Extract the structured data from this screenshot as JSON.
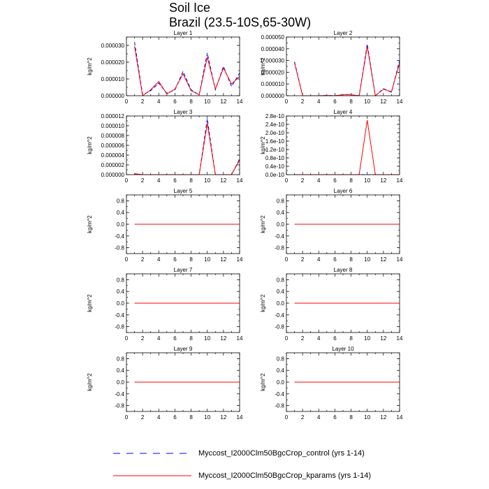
{
  "figure": {
    "title_line1": "Soil Ice",
    "title_line2": "Brazil (23.5-10S,65-30W)"
  },
  "legend": [
    {
      "label": "Myccost_I2000Clm50BgcCrop_control (yrs 1-14)",
      "color": "#0000ff",
      "style": "dashed"
    },
    {
      "label": "Myccost_I2000Clm50BgcCrop_kparams (yrs 1-14)",
      "color": "#ff0000",
      "style": "solid"
    }
  ],
  "chart_data": [
    {
      "type": "line",
      "title": "Layer 1",
      "ylabel": "kg/m^2",
      "xlim": [
        0,
        14
      ],
      "ylim": [
        0,
        3.5e-05
      ],
      "xticks": [
        "0",
        "2",
        "4",
        "6",
        "8",
        "10",
        "12",
        "14"
      ],
      "yticks": [
        {
          "v": 0,
          "label": "0.000000"
        },
        {
          "v": 1e-05,
          "label": "0.000010"
        },
        {
          "v": 2e-05,
          "label": "0.000020"
        },
        {
          "v": 3e-05,
          "label": "0.000030"
        }
      ],
      "x": [
        1,
        2,
        3,
        4,
        5,
        6,
        7,
        8,
        9,
        10,
        11,
        12,
        13,
        14
      ],
      "series": [
        {
          "name": "Myccost_I2000Clm50BgcCrop_control (yrs 1-14)",
          "color": "#0000ff",
          "dash": true,
          "values": [
            3.2e-05,
            5e-07,
            3e-06,
            7.5e-06,
            1.5e-06,
            3.5e-06,
            1.45e-05,
            3.5e-06,
            5e-07,
            2.55e-05,
            3.5e-06,
            1.75e-05,
            5.5e-06,
            1.35e-05
          ]
        },
        {
          "name": "Myccost_I2000Clm50BgcCrop_kparams (yrs 1-14)",
          "color": "#ff0000",
          "dash": false,
          "values": [
            2.95e-05,
            0.0,
            3.5e-06,
            8.5e-06,
            1e-06,
            4e-06,
            1.3e-05,
            3e-06,
            5e-07,
            2.3e-05,
            4e-06,
            1.65e-05,
            7e-06,
            1.15e-05
          ]
        }
      ]
    },
    {
      "type": "line",
      "title": "Layer 2",
      "ylabel": "kg/m^2",
      "xlim": [
        0,
        14
      ],
      "ylim": [
        0,
        5e-05
      ],
      "xticks": [
        "0",
        "2",
        "4",
        "6",
        "8",
        "10",
        "12",
        "14"
      ],
      "yticks": [
        {
          "v": 0,
          "label": "0.000000"
        },
        {
          "v": 1e-05,
          "label": "0.000010"
        },
        {
          "v": 2e-05,
          "label": "0.000020"
        },
        {
          "v": 3e-05,
          "label": "0.000030"
        },
        {
          "v": 4e-05,
          "label": "0.000040"
        },
        {
          "v": 5e-05,
          "label": "0.000050"
        }
      ],
      "x": [
        1,
        2,
        3,
        4,
        5,
        6,
        7,
        8,
        9,
        10,
        11,
        12,
        13,
        14
      ],
      "series": [
        {
          "name": "Myccost_I2000Clm50BgcCrop_control (yrs 1-14)",
          "color": "#0000ff",
          "dash": true,
          "values": [
            2.9e-05,
            0.0,
            0.0,
            0.0,
            2e-07,
            0.0,
            1e-06,
            8e-07,
            0.0,
            4.4e-05,
            0.0,
            6e-06,
            3e-06,
            3e-05
          ]
        },
        {
          "name": "Myccost_I2000Clm50BgcCrop_kparams (yrs 1-14)",
          "color": "#ff0000",
          "dash": false,
          "values": [
            2.8e-05,
            0.0,
            0.0,
            0.0,
            2e-07,
            0.0,
            8e-07,
            8e-07,
            0.0,
            4.2e-05,
            0.0,
            5.5e-06,
            3.5e-06,
            2.8e-05
          ]
        }
      ]
    },
    {
      "type": "line",
      "title": "Layer 3",
      "ylabel": "kg/m^2",
      "xlim": [
        0,
        14
      ],
      "ylim": [
        0,
        1.2e-05
      ],
      "xticks": [
        "0",
        "2",
        "4",
        "6",
        "8",
        "10",
        "12",
        "14"
      ],
      "yticks": [
        {
          "v": 0,
          "label": "0.000000"
        },
        {
          "v": 2e-06,
          "label": "0.000002"
        },
        {
          "v": 4e-06,
          "label": "0.000004"
        },
        {
          "v": 6e-06,
          "label": "0.000006"
        },
        {
          "v": 8e-06,
          "label": "0.000008"
        },
        {
          "v": 1e-05,
          "label": "0.000010"
        },
        {
          "v": 1.2e-05,
          "label": "0.000012"
        }
      ],
      "x": [
        1,
        2,
        3,
        4,
        5,
        6,
        7,
        8,
        9,
        10,
        11,
        12,
        13,
        14
      ],
      "series": [
        {
          "name": "Myccost_I2000Clm50BgcCrop_control (yrs 1-14)",
          "color": "#0000ff",
          "dash": true,
          "values": [
            2e-07,
            0.0,
            0.0,
            0.0,
            0.0,
            0.0,
            0.0,
            0.0,
            0.0,
            1.14e-05,
            0.0,
            0.0,
            0.0,
            3.2e-06
          ]
        },
        {
          "name": "Myccost_I2000Clm50BgcCrop_kparams (yrs 1-14)",
          "color": "#ff0000",
          "dash": false,
          "values": [
            2e-07,
            0.0,
            0.0,
            0.0,
            0.0,
            0.0,
            0.0,
            0.0,
            0.0,
            1.05e-05,
            0.0,
            0.0,
            0.0,
            3e-06
          ]
        }
      ]
    },
    {
      "type": "line",
      "title": "Layer 4",
      "ylabel": "kg/m^2",
      "xlim": [
        0,
        14
      ],
      "ylim": [
        0,
        2.8e-10
      ],
      "xticks": [
        "0",
        "2",
        "4",
        "6",
        "8",
        "10",
        "12",
        "14"
      ],
      "yticks": [
        {
          "v": 0,
          "label": "0.0e-10"
        },
        {
          "v": 4e-11,
          "label": "0.4e-10"
        },
        {
          "v": 8e-11,
          "label": "0.8e-10"
        },
        {
          "v": 1.2e-10,
          "label": "1.2e-10"
        },
        {
          "v": 1.6e-10,
          "label": "1.6e-10"
        },
        {
          "v": 2e-10,
          "label": "2.0e-10"
        },
        {
          "v": 2.4e-10,
          "label": "2.4e-10"
        },
        {
          "v": 2.8e-10,
          "label": "2.8e-10"
        }
      ],
      "x": [
        1,
        2,
        3,
        4,
        5,
        6,
        7,
        8,
        9,
        10,
        11,
        12,
        13,
        14
      ],
      "series": [
        {
          "name": "Myccost_I2000Clm50BgcCrop_control (yrs 1-14)",
          "color": "#0000ff",
          "dash": true,
          "values": [
            0,
            0,
            0,
            0,
            0,
            0,
            0,
            0,
            0,
            0,
            0,
            0,
            0,
            0
          ]
        },
        {
          "name": "Myccost_I2000Clm50BgcCrop_kparams (yrs 1-14)",
          "color": "#ff0000",
          "dash": false,
          "values": [
            0,
            0,
            0,
            0,
            0,
            0,
            0,
            0,
            0,
            2.6e-10,
            0,
            0,
            0,
            0
          ]
        }
      ]
    },
    {
      "type": "line",
      "title": "Layer 5",
      "ylabel": "kg/m^2",
      "xlim": [
        0,
        14
      ],
      "ylim": [
        -1,
        1
      ],
      "xticks": [
        "0",
        "2",
        "4",
        "6",
        "8",
        "10",
        "12",
        "14"
      ],
      "yticks": [
        {
          "v": -0.8,
          "label": "-0.8"
        },
        {
          "v": -0.4,
          "label": "-0.4"
        },
        {
          "v": 0,
          "label": "0.0"
        },
        {
          "v": 0.4,
          "label": "0.4"
        },
        {
          "v": 0.8,
          "label": "0.8"
        }
      ],
      "x": [
        1,
        2,
        3,
        4,
        5,
        6,
        7,
        8,
        9,
        10,
        11,
        12,
        13,
        14
      ],
      "series": [
        {
          "name": "Myccost_I2000Clm50BgcCrop_control (yrs 1-14)",
          "color": "#0000ff",
          "dash": true,
          "values": [
            0,
            0,
            0,
            0,
            0,
            0,
            0,
            0,
            0,
            0,
            0,
            0,
            0,
            0
          ]
        },
        {
          "name": "Myccost_I2000Clm50BgcCrop_kparams (yrs 1-14)",
          "color": "#ff0000",
          "dash": false,
          "values": [
            0,
            0,
            0,
            0,
            0,
            0,
            0,
            0,
            0,
            0,
            0,
            0,
            0,
            0
          ]
        }
      ]
    },
    {
      "type": "line",
      "title": "Layer 6",
      "ylabel": "kg/m^2",
      "xlim": [
        0,
        14
      ],
      "ylim": [
        -1,
        1
      ],
      "xticks": [
        "0",
        "2",
        "4",
        "6",
        "8",
        "10",
        "12",
        "14"
      ],
      "yticks": [
        {
          "v": -0.8,
          "label": "-0.8"
        },
        {
          "v": -0.4,
          "label": "-0.4"
        },
        {
          "v": 0,
          "label": "0.0"
        },
        {
          "v": 0.4,
          "label": "0.4"
        },
        {
          "v": 0.8,
          "label": "0.8"
        }
      ],
      "x": [
        1,
        2,
        3,
        4,
        5,
        6,
        7,
        8,
        9,
        10,
        11,
        12,
        13,
        14
      ],
      "series": [
        {
          "name": "Myccost_I2000Clm50BgcCrop_control (yrs 1-14)",
          "color": "#0000ff",
          "dash": true,
          "values": [
            0,
            0,
            0,
            0,
            0,
            0,
            0,
            0,
            0,
            0,
            0,
            0,
            0,
            0
          ]
        },
        {
          "name": "Myccost_I2000Clm50BgcCrop_kparams (yrs 1-14)",
          "color": "#ff0000",
          "dash": false,
          "values": [
            0,
            0,
            0,
            0,
            0,
            0,
            0,
            0,
            0,
            0,
            0,
            0,
            0,
            0
          ]
        }
      ]
    },
    {
      "type": "line",
      "title": "Layer 7",
      "ylabel": "kg/m^2",
      "xlim": [
        0,
        14
      ],
      "ylim": [
        -1,
        1
      ],
      "xticks": [
        "0",
        "2",
        "4",
        "6",
        "8",
        "10",
        "12",
        "14"
      ],
      "yticks": [
        {
          "v": -0.8,
          "label": "-0.8"
        },
        {
          "v": -0.4,
          "label": "-0.4"
        },
        {
          "v": 0,
          "label": "0.0"
        },
        {
          "v": 0.4,
          "label": "0.4"
        },
        {
          "v": 0.8,
          "label": "0.8"
        }
      ],
      "x": [
        1,
        2,
        3,
        4,
        5,
        6,
        7,
        8,
        9,
        10,
        11,
        12,
        13,
        14
      ],
      "series": [
        {
          "name": "Myccost_I2000Clm50BgcCrop_control (yrs 1-14)",
          "color": "#0000ff",
          "dash": true,
          "values": [
            0,
            0,
            0,
            0,
            0,
            0,
            0,
            0,
            0,
            0,
            0,
            0,
            0,
            0
          ]
        },
        {
          "name": "Myccost_I2000Clm50BgcCrop_kparams (yrs 1-14)",
          "color": "#ff0000",
          "dash": false,
          "values": [
            0,
            0,
            0,
            0,
            0,
            0,
            0,
            0,
            0,
            0,
            0,
            0,
            0,
            0
          ]
        }
      ]
    },
    {
      "type": "line",
      "title": "Layer 8",
      "ylabel": "kg/m^2",
      "xlim": [
        0,
        14
      ],
      "ylim": [
        -1,
        1
      ],
      "xticks": [
        "0",
        "2",
        "4",
        "6",
        "8",
        "10",
        "12",
        "14"
      ],
      "yticks": [
        {
          "v": -0.8,
          "label": "-0.8"
        },
        {
          "v": -0.4,
          "label": "-0.4"
        },
        {
          "v": 0,
          "label": "0.0"
        },
        {
          "v": 0.4,
          "label": "0.4"
        },
        {
          "v": 0.8,
          "label": "0.8"
        }
      ],
      "x": [
        1,
        2,
        3,
        4,
        5,
        6,
        7,
        8,
        9,
        10,
        11,
        12,
        13,
        14
      ],
      "series": [
        {
          "name": "Myccost_I2000Clm50BgcCrop_control (yrs 1-14)",
          "color": "#0000ff",
          "dash": true,
          "values": [
            0,
            0,
            0,
            0,
            0,
            0,
            0,
            0,
            0,
            0,
            0,
            0,
            0,
            0
          ]
        },
        {
          "name": "Myccost_I2000Clm50BgcCrop_kparams (yrs 1-14)",
          "color": "#ff0000",
          "dash": false,
          "values": [
            0,
            0,
            0,
            0,
            0,
            0,
            0,
            0,
            0,
            0,
            0,
            0,
            0,
            0
          ]
        }
      ]
    },
    {
      "type": "line",
      "title": "Layer 9",
      "ylabel": "kg/m^2",
      "xlim": [
        0,
        14
      ],
      "ylim": [
        -1,
        1
      ],
      "xticks": [
        "0",
        "2",
        "4",
        "6",
        "8",
        "10",
        "12",
        "14"
      ],
      "yticks": [
        {
          "v": -0.8,
          "label": "-0.8"
        },
        {
          "v": -0.4,
          "label": "-0.4"
        },
        {
          "v": 0,
          "label": "0.0"
        },
        {
          "v": 0.4,
          "label": "0.4"
        },
        {
          "v": 0.8,
          "label": "0.8"
        }
      ],
      "x": [
        1,
        2,
        3,
        4,
        5,
        6,
        7,
        8,
        9,
        10,
        11,
        12,
        13,
        14
      ],
      "series": [
        {
          "name": "Myccost_I2000Clm50BgcCrop_control (yrs 1-14)",
          "color": "#0000ff",
          "dash": true,
          "values": [
            0,
            0,
            0,
            0,
            0,
            0,
            0,
            0,
            0,
            0,
            0,
            0,
            0,
            0
          ]
        },
        {
          "name": "Myccost_I2000Clm50BgcCrop_kparams (yrs 1-14)",
          "color": "#ff0000",
          "dash": false,
          "values": [
            0,
            0,
            0,
            0,
            0,
            0,
            0,
            0,
            0,
            0,
            0,
            0,
            0,
            0
          ]
        }
      ]
    },
    {
      "type": "line",
      "title": "Layer 10",
      "ylabel": "kg/m^2",
      "xlim": [
        0,
        14
      ],
      "ylim": [
        -1,
        1
      ],
      "xticks": [
        "0",
        "2",
        "4",
        "6",
        "8",
        "10",
        "12",
        "14"
      ],
      "yticks": [
        {
          "v": -0.8,
          "label": "-0.8"
        },
        {
          "v": -0.4,
          "label": "-0.4"
        },
        {
          "v": 0,
          "label": "0.0"
        },
        {
          "v": 0.4,
          "label": "0.4"
        },
        {
          "v": 0.8,
          "label": "0.8"
        }
      ],
      "x": [
        1,
        2,
        3,
        4,
        5,
        6,
        7,
        8,
        9,
        10,
        11,
        12,
        13,
        14
      ],
      "series": [
        {
          "name": "Myccost_I2000Clm50BgcCrop_control (yrs 1-14)",
          "color": "#0000ff",
          "dash": true,
          "values": [
            0,
            0,
            0,
            0,
            0,
            0,
            0,
            0,
            0,
            0,
            0,
            0,
            0,
            0
          ]
        },
        {
          "name": "Myccost_I2000Clm50BgcCrop_kparams (yrs 1-14)",
          "color": "#ff0000",
          "dash": false,
          "values": [
            0,
            0,
            0,
            0,
            0,
            0,
            0,
            0,
            0,
            0,
            0,
            0,
            0,
            0
          ]
        }
      ]
    }
  ]
}
